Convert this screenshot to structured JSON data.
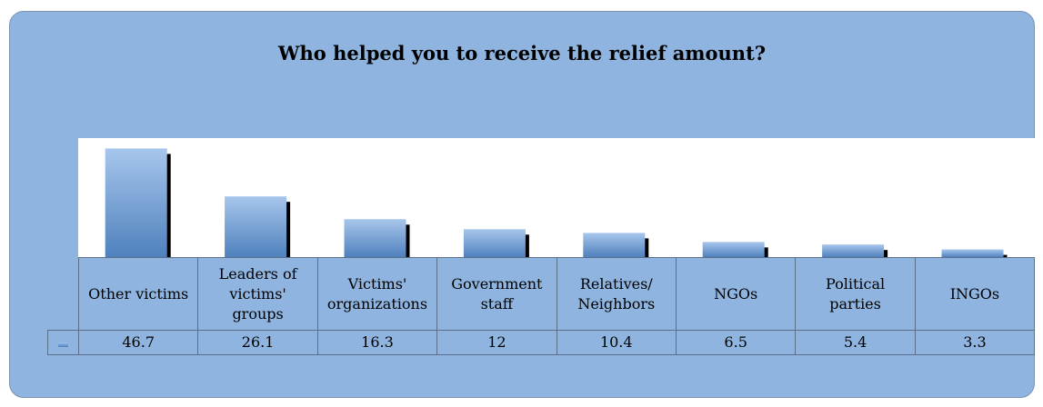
{
  "chart_data": {
    "type": "bar",
    "title": "Who helped you to receive the relief amount?",
    "categories": [
      "Other victims",
      "Leaders of victims' groups",
      "Victims' organizations",
      "Government staff",
      "Relatives/ Neighbors",
      "NGOs",
      "Political parties",
      "INGOs"
    ],
    "category_lines": [
      [
        "Other victims"
      ],
      [
        "Leaders of",
        "victims'",
        "groups"
      ],
      [
        "Victims'",
        "organizations"
      ],
      [
        "Government",
        "staff"
      ],
      [
        "Relatives/",
        "Neighbors"
      ],
      [
        "NGOs"
      ],
      [
        "Political",
        "parties"
      ],
      [
        "INGOs"
      ]
    ],
    "values": [
      46.7,
      26.1,
      16.3,
      12,
      10.4,
      6.5,
      5.4,
      3.3
    ],
    "value_labels": [
      "46.7",
      "26.1",
      "16.3",
      "12",
      "10.4",
      "6.5",
      "5.4",
      "3.3"
    ],
    "ylim": [
      0,
      50
    ],
    "grid": false,
    "legend": "data-table",
    "colors": {
      "bar_top": "#a7c6ec",
      "bar_bottom": "#4f81bd",
      "shadow": "#000000",
      "background": "#8eb4df"
    }
  }
}
